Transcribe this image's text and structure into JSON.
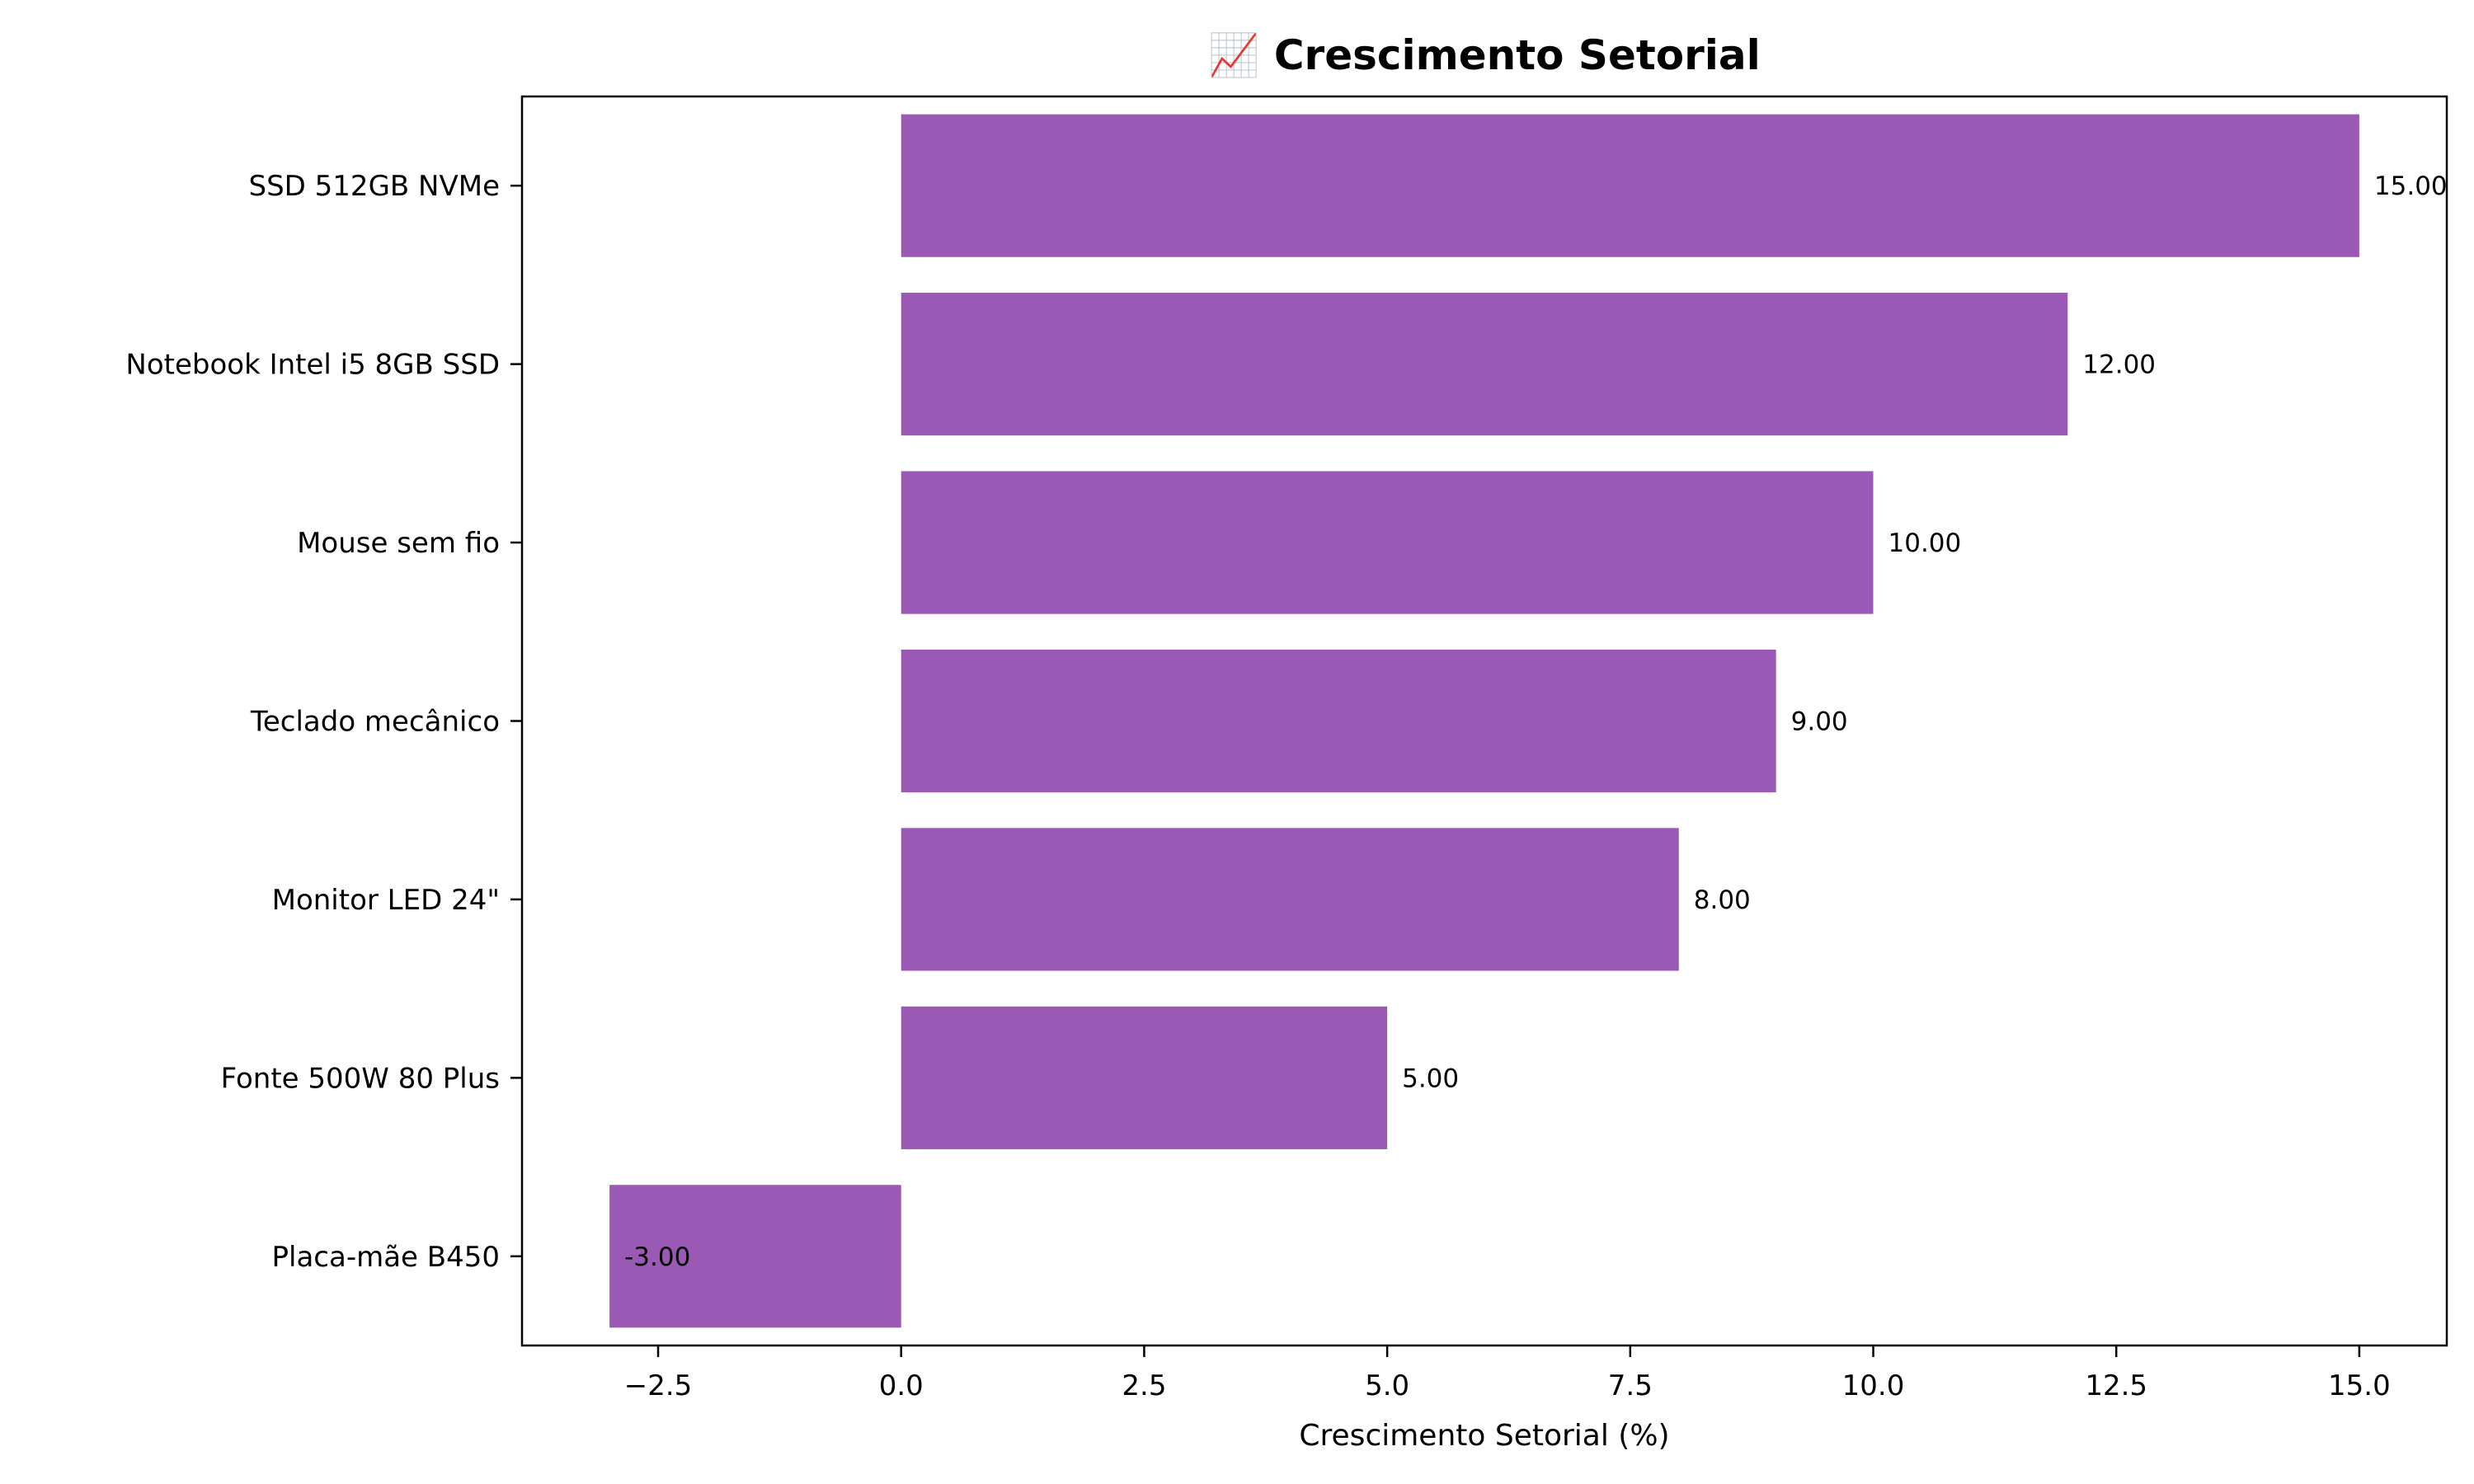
{
  "chart_data": {
    "type": "bar",
    "orientation": "horizontal",
    "title": "📈 Crescimento Setorial",
    "xlabel": "Crescimento Setorial (%)",
    "ylabel": "",
    "categories": [
      "SSD 512GB NVMe",
      "Notebook Intel i5 8GB SSD",
      "Mouse sem fio",
      "Teclado mecânico",
      "Monitor LED 24\"",
      "Fonte 500W 80 Plus",
      "Placa-mãe B450"
    ],
    "values": [
      15.0,
      12.0,
      10.0,
      9.0,
      8.0,
      5.0,
      -3.0
    ],
    "value_labels": [
      "15.00",
      "12.00",
      "10.00",
      "9.00",
      "8.00",
      "5.00",
      "-3.00"
    ],
    "xlim": [
      -3.9,
      15.9
    ],
    "xticks": [
      -2.5,
      0.0,
      2.5,
      5.0,
      7.5,
      10.0,
      12.5,
      15.0
    ],
    "xtick_labels": [
      "−2.5",
      "0.0",
      "2.5",
      "5.0",
      "7.5",
      "10.0",
      "12.5",
      "15.0"
    ],
    "grid": false,
    "legend": "none",
    "bar_color": "#9b59b6"
  }
}
